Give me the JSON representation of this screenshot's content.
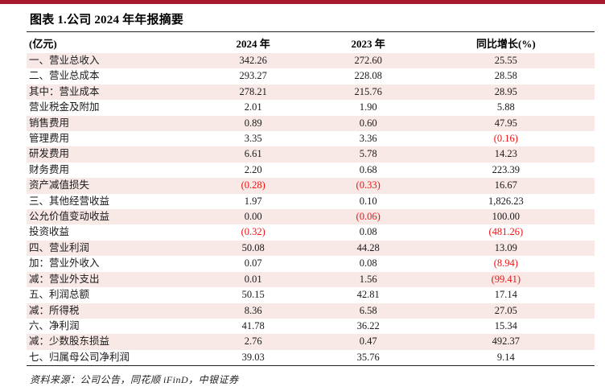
{
  "page": {
    "title": "图表 1.公司 2024 年年报摘要",
    "source_note": "资料来源：公司公告，同花顺 iFinD，中银证券"
  },
  "colors": {
    "top_bar": "#A6182B",
    "row_stripe": "#F8E8E6",
    "negative_value": "#EE1211",
    "rule_line": "#222222"
  },
  "table": {
    "headers": [
      "(亿元)",
      "2024 年",
      "2023 年",
      "同比增长(%)"
    ],
    "rows": [
      {
        "label": "一、营业总收入",
        "v2024": "342.26",
        "v2023": "272.60",
        "yoy": "25.55"
      },
      {
        "label": "二、营业总成本",
        "v2024": "293.27",
        "v2023": "228.08",
        "yoy": "28.58"
      },
      {
        "label": "其中：营业成本",
        "v2024": "278.21",
        "v2023": "215.76",
        "yoy": "28.95"
      },
      {
        "label": "营业税金及附加",
        "v2024": "2.01",
        "v2023": "1.90",
        "yoy": "5.88"
      },
      {
        "label": "销售费用",
        "v2024": "0.89",
        "v2023": "0.60",
        "yoy": "47.95"
      },
      {
        "label": "管理费用",
        "v2024": "3.35",
        "v2023": "3.36",
        "yoy": "(0.16)"
      },
      {
        "label": "研发费用",
        "v2024": "6.61",
        "v2023": "5.78",
        "yoy": "14.23"
      },
      {
        "label": "财务费用",
        "v2024": "2.20",
        "v2023": "0.68",
        "yoy": "223.39"
      },
      {
        "label": "资产减值损失",
        "v2024": "(0.28)",
        "v2023": "(0.33)",
        "yoy": "16.67"
      },
      {
        "label": "三、其他经营收益",
        "v2024": "1.97",
        "v2023": "0.10",
        "yoy": "1,826.23"
      },
      {
        "label": "公允价值变动收益",
        "v2024": "0.00",
        "v2023": "(0.06)",
        "yoy": "100.00"
      },
      {
        "label": "投资收益",
        "v2024": "(0.32)",
        "v2023": "0.08",
        "yoy": "(481.26)"
      },
      {
        "label": "四、营业利润",
        "v2024": "50.08",
        "v2023": "44.28",
        "yoy": "13.09"
      },
      {
        "label": "加：营业外收入",
        "v2024": "0.07",
        "v2023": "0.08",
        "yoy": "(8.94)"
      },
      {
        "label": "减：营业外支出",
        "v2024": "0.01",
        "v2023": "1.56",
        "yoy": "(99.41)"
      },
      {
        "label": "五、利润总额",
        "v2024": "50.15",
        "v2023": "42.81",
        "yoy": "17.14"
      },
      {
        "label": "减：所得税",
        "v2024": "8.36",
        "v2023": "6.58",
        "yoy": "27.05"
      },
      {
        "label": "六、净利润",
        "v2024": "41.78",
        "v2023": "36.22",
        "yoy": "15.34"
      },
      {
        "label": "减：少数股东损益",
        "v2024": "2.76",
        "v2023": "0.47",
        "yoy": "492.37"
      },
      {
        "label": "七、归属母公司净利润",
        "v2024": "39.03",
        "v2023": "35.76",
        "yoy": "9.14"
      }
    ]
  }
}
